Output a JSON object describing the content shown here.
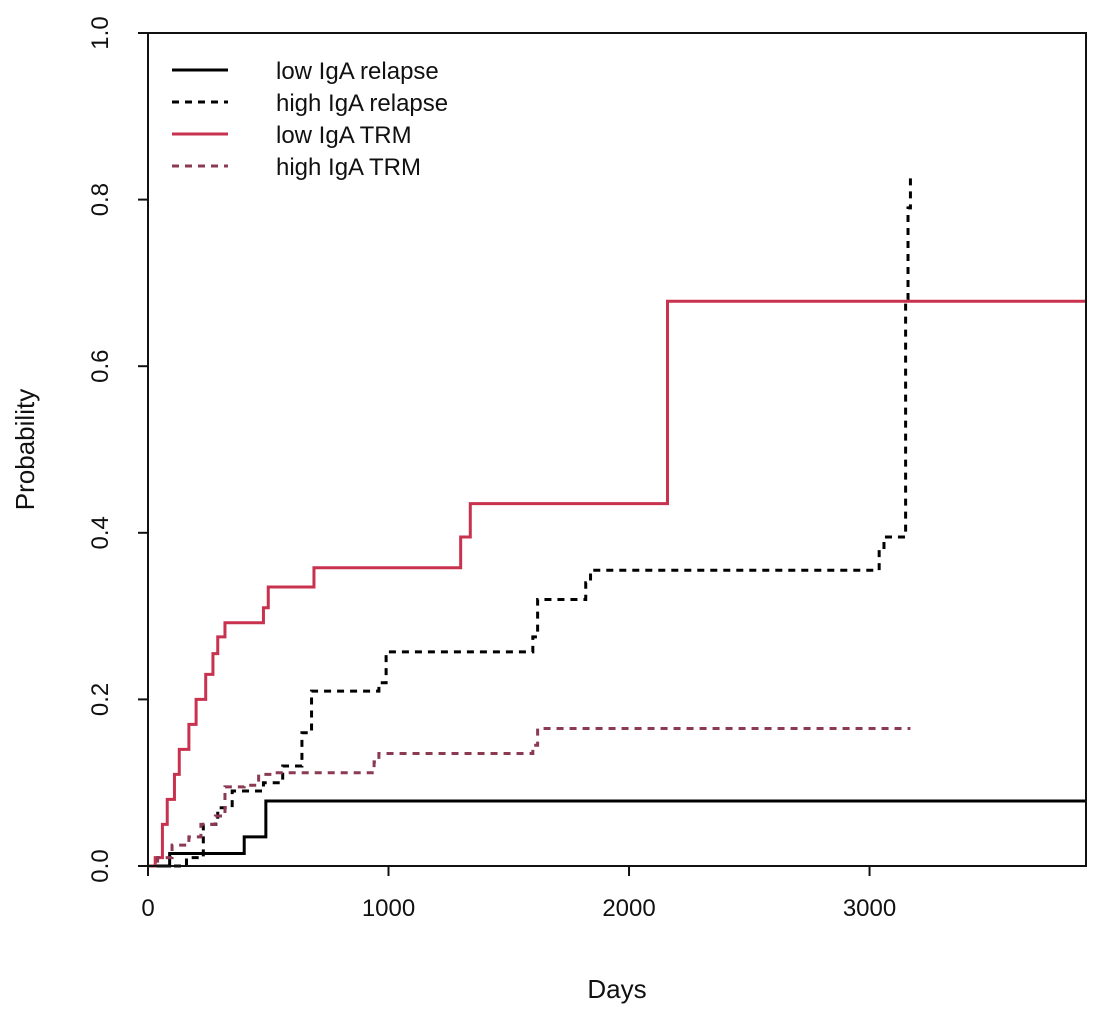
{
  "chart_data": {
    "type": "line",
    "subtype": "step",
    "title": "",
    "xlabel": "Days",
    "ylabel": "Probability",
    "xlim": [
      0,
      3900
    ],
    "ylim": [
      0,
      1
    ],
    "xticks": [
      0,
      1000,
      2000,
      3000
    ],
    "xtick_labels": [
      "0",
      "1000",
      "2000",
      "3000"
    ],
    "yticks": [
      0,
      0.2,
      0.4,
      0.6,
      0.8,
      1.0
    ],
    "ytick_labels": [
      "0.0",
      "0.2",
      "0.4",
      "0.6",
      "0.8",
      "1.0"
    ],
    "grid": false,
    "legend_position": "top-left",
    "series": [
      {
        "name": "low IgA relapse",
        "color": "#000000",
        "dash": "solid",
        "x": [
          90,
          400,
          490,
          3900
        ],
        "y": [
          0.015,
          0.035,
          0.078,
          0.078
        ]
      },
      {
        "name": "high IgA relapse",
        "color": "#000000",
        "dash": "dashed",
        "x": [
          160,
          230,
          290,
          350,
          480,
          560,
          640,
          680,
          960,
          990,
          1600,
          1620,
          1820,
          1840,
          3040,
          3060,
          3150,
          3160,
          3170
        ],
        "y": [
          0.01,
          0.05,
          0.07,
          0.09,
          0.1,
          0.12,
          0.16,
          0.21,
          0.22,
          0.257,
          0.275,
          0.32,
          0.34,
          0.355,
          0.38,
          0.395,
          0.68,
          0.79,
          0.83
        ]
      },
      {
        "name": "low IgA TRM",
        "color": "#c8324e",
        "dash": "solid",
        "x": [
          30,
          60,
          80,
          110,
          130,
          170,
          200,
          240,
          270,
          290,
          320,
          480,
          500,
          690,
          1300,
          1340,
          2160,
          3900
        ],
        "y": [
          0.01,
          0.05,
          0.08,
          0.11,
          0.14,
          0.17,
          0.2,
          0.23,
          0.255,
          0.275,
          0.292,
          0.31,
          0.335,
          0.358,
          0.395,
          0.435,
          0.678,
          0.678
        ]
      },
      {
        "name": "high IgA TRM",
        "color": "#8b3a52",
        "dash": "dashed",
        "x": [
          40,
          100,
          170,
          220,
          280,
          320,
          400,
          460,
          520,
          940,
          960,
          1600,
          1620,
          3170
        ],
        "y": [
          0.01,
          0.025,
          0.035,
          0.05,
          0.06,
          0.095,
          0.097,
          0.11,
          0.112,
          0.125,
          0.135,
          0.145,
          0.165,
          0.165
        ]
      }
    ]
  }
}
